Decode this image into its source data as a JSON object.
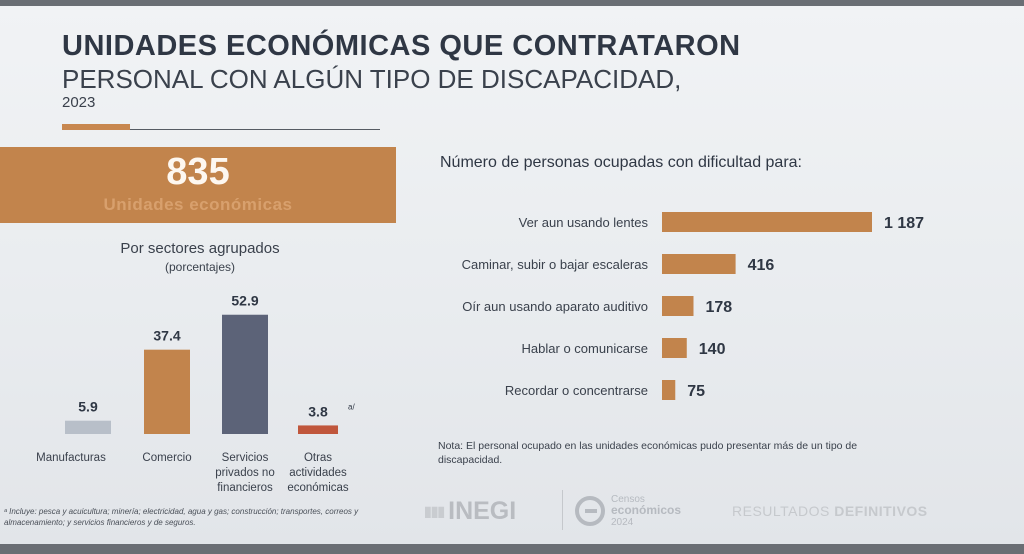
{
  "header": {
    "title_line1": "UNIDADES ECONÓMICAS QUE CONTRATARON",
    "title_line2": "PERSONAL CON ALGÚN TIPO DE DISCAPACIDAD,",
    "year": "2023"
  },
  "units": {
    "number": "835",
    "label": "Unidades económicas"
  },
  "sectors": {
    "title": "Por sectores agrupados",
    "subtitle": "(porcentajes)",
    "footnote": "ᵃ Incluye: pesca y acuicultura; minería; electricidad, agua y gas; construcción; transportes, correos y almacenamiento; y servicios financieros y de seguros."
  },
  "difficulty": {
    "title": "Número de personas ocupadas con dificultad para:",
    "note": "Nota: El personal ocupado en las unidades económicas pudo presentar más de un tipo de discapacidad."
  },
  "colors": {
    "accent": "#c2844c",
    "gray_bar": "#b8bfc9",
    "navy_bar": "#5c6378",
    "red_bar": "#c0563c"
  },
  "chart_data": [
    {
      "type": "bar",
      "title": "Por sectores agrupados",
      "subtitle": "(porcentajes)",
      "categories": [
        "Manufacturas",
        "Comercio",
        "Servicios privados no financieros",
        "Otras actividades económicas"
      ],
      "category_lines": [
        [
          "Manufacturas"
        ],
        [
          "Comercio"
        ],
        [
          "Servicios",
          "privados no",
          "financieros"
        ],
        [
          "Otras",
          "actividades",
          "económicas"
        ]
      ],
      "values": [
        5.9,
        37.4,
        52.9,
        3.8
      ],
      "value_labels": [
        "5.9",
        "37.4",
        "52.9",
        "3.8"
      ],
      "superscript": [
        "",
        "",
        "",
        "a/"
      ],
      "bar_colors": [
        "#b8bfc9",
        "#c2844c",
        "#5c6378",
        "#c0563c"
      ],
      "ylim": [
        0,
        55
      ]
    },
    {
      "type": "bar",
      "orientation": "horizontal",
      "title": "Número de personas ocupadas con dificultad para:",
      "categories": [
        "Ver aun usando lentes",
        "Caminar, subir o bajar escaleras",
        "Oír aun usando aparato auditivo",
        "Hablar o comunicarse",
        "Recordar o concentrarse"
      ],
      "values": [
        1187,
        416,
        178,
        140,
        75
      ],
      "value_labels": [
        "1 187",
        "416",
        "178",
        "140",
        "75"
      ],
      "color": "#c2844c",
      "xlim": [
        0,
        1187
      ]
    }
  ],
  "footer": {
    "inegi_mark": "▮▮▮",
    "inegi": "INEGI",
    "censos_small": "Censos",
    "censos": "económicos",
    "censos_year": "2024",
    "results_light": "RESULTADOS",
    "results_bold": "DEFINITIVOS"
  }
}
